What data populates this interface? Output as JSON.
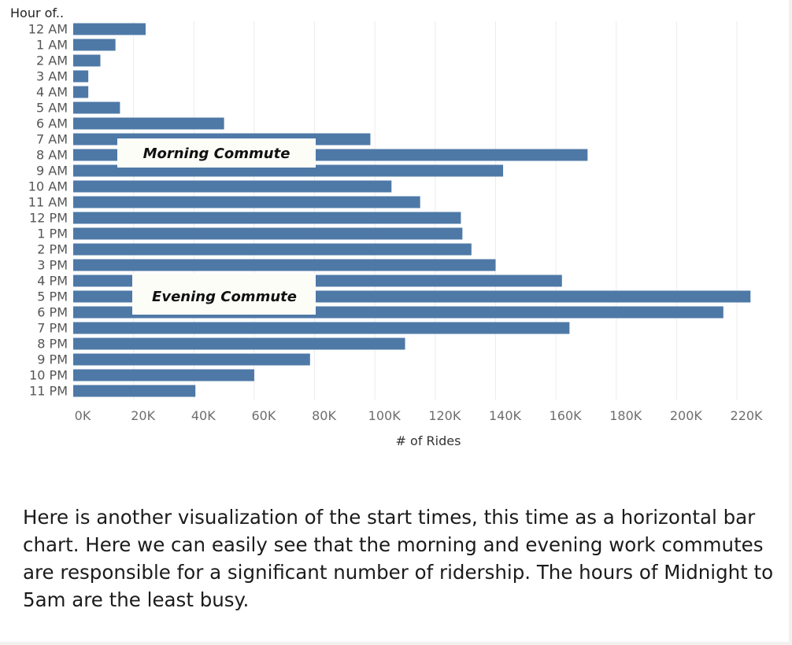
{
  "chart_data": {
    "type": "bar",
    "orientation": "horizontal",
    "ylabel": "Hour of..",
    "xlabel": "# of Rides",
    "categories": [
      "12 AM",
      "1 AM",
      "2 AM",
      "3 AM",
      "4 AM",
      "5 AM",
      "6 AM",
      "7 AM",
      "8 AM",
      "9 AM",
      "10 AM",
      "11 AM",
      "12 PM",
      "1 PM",
      "2 PM",
      "3 PM",
      "4 PM",
      "5 PM",
      "6 PM",
      "7 PM",
      "8 PM",
      "9 PM",
      "10 PM",
      "11 PM"
    ],
    "values": [
      24000,
      14000,
      9000,
      5000,
      5000,
      15500,
      50000,
      98500,
      170500,
      142500,
      105500,
      115000,
      128500,
      129000,
      132000,
      140000,
      162000,
      224500,
      215500,
      164500,
      110000,
      78500,
      60000,
      40500
    ],
    "xlim": [
      0,
      230000
    ],
    "x_ticks": [
      0,
      20000,
      40000,
      60000,
      80000,
      100000,
      120000,
      140000,
      160000,
      180000,
      200000,
      220000
    ],
    "x_tick_labels": [
      "0K",
      "20K",
      "40K",
      "60K",
      "80K",
      "100K",
      "120K",
      "140K",
      "160K",
      "180K",
      "200K",
      "220K"
    ],
    "grid": true,
    "bar_color": "#4e79a7",
    "annotations": [
      {
        "text": "Morning Commute",
        "near": "8 AM"
      },
      {
        "text": "Evening Commute",
        "near": "5 PM"
      }
    ]
  },
  "caption": "Here is another visualization of the start times, this time as a horizontal bar chart. Here we can easily see that the morning and evening work commutes are responsible for a significant number of ridership. The hours of Midnight to 5am are the least busy."
}
